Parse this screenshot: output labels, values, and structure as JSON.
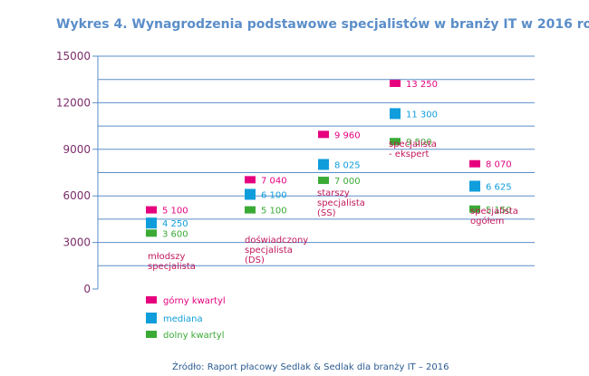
{
  "title": "Wykres 4. Wynagrodzenia podstawowe specjalistów w branży IT w 2016 roku",
  "source": "Źródło: Raport płacowy Sedlak & Sedlak dla branży IT – 2016",
  "colors": {
    "upper": "#e6007e",
    "median": "#0f9ddb",
    "lower": "#3aaa35",
    "grid": "#5b8ec9",
    "tick": "#7b2d6b",
    "category": "#c2185b"
  },
  "chart_data": {
    "type": "scatter",
    "title": "Wykres 4. Wynagrodzenia podstawowe specjalistów w branży IT w 2016 roku",
    "ylim": [
      0,
      15000
    ],
    "yticks": [
      0,
      3000,
      6000,
      9000,
      12000,
      15000
    ],
    "ytick_labels": [
      "0",
      "3000",
      "6000",
      "9000",
      "12000",
      "15000"
    ],
    "grid": true,
    "legend_position": "bottom-left",
    "categories": [
      [
        "młodszy",
        "specjalista"
      ],
      [
        "doświadczony",
        "specjalista",
        "(DS)"
      ],
      [
        "starszy",
        "specjalista",
        "(SS)"
      ],
      [
        "specjalista",
        "- ekspert"
      ],
      [
        "specjalista",
        "ogółem"
      ]
    ],
    "series": [
      {
        "name": "górny kwartyl",
        "color": "#e6007e",
        "values": [
          5100,
          7040,
          9960,
          13250,
          8070
        ],
        "labels": [
          "5 100",
          "7 040",
          "9 960",
          "13 250",
          "8 070"
        ]
      },
      {
        "name": "mediana",
        "color": "#0f9ddb",
        "values": [
          4250,
          6100,
          8025,
          11300,
          6625
        ],
        "labels": [
          "4 250",
          "6 100",
          "8 025",
          "11 300",
          "6 625"
        ]
      },
      {
        "name": "dolny kwartyl",
        "color": "#3aaa35",
        "values": [
          3600,
          5100,
          7000,
          9500,
          5150
        ],
        "labels": [
          "3 600",
          "5 100",
          "7 000",
          "9 500",
          "5 150"
        ]
      }
    ]
  }
}
